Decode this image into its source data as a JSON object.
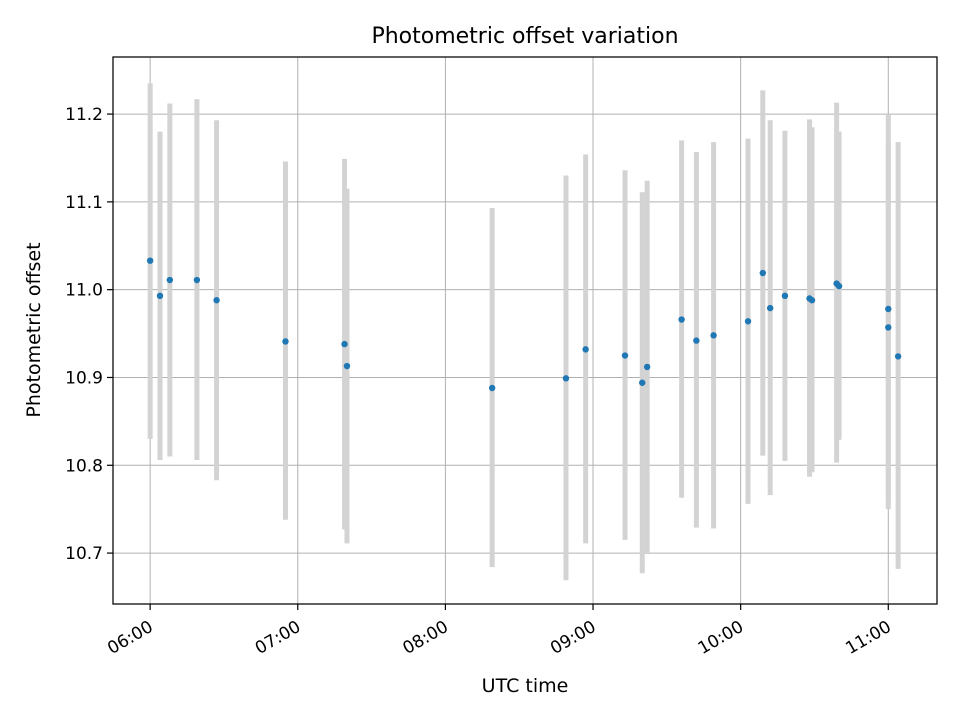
{
  "chart_data": {
    "type": "scatter",
    "title": "Photometric offset variation",
    "xlabel": "UTC time",
    "ylabel": "Photometric offset",
    "x_tick_labels": [
      "06:00",
      "07:00",
      "08:00",
      "09:00",
      "10:00",
      "11:00"
    ],
    "x_ticks_minutes": [
      0,
      60,
      120,
      180,
      240,
      300
    ],
    "y_ticks": [
      10.7,
      10.8,
      10.9,
      11.0,
      11.1,
      11.2
    ],
    "y_tick_labels": [
      "10.7",
      "10.8",
      "10.9",
      "11.0",
      "11.1",
      "11.2"
    ],
    "xlim_minutes": [
      -15.1,
      319.8
    ],
    "ylim": [
      10.642,
      11.265
    ],
    "grid": true,
    "series": [
      {
        "error_color": "#d3d3d3",
        "point_color": "#1f77b4",
        "points": [
          {
            "t": "06:00",
            "y": 11.033,
            "err_low": 10.83,
            "err_high": 11.235
          },
          {
            "t": "06:04",
            "y": 10.993,
            "err_low": 10.806,
            "err_high": 11.18
          },
          {
            "t": "06:08",
            "y": 11.011,
            "err_low": 10.81,
            "err_high": 11.212
          },
          {
            "t": "06:19",
            "y": 11.011,
            "err_low": 10.806,
            "err_high": 11.217
          },
          {
            "t": "06:27",
            "y": 10.988,
            "err_low": 10.783,
            "err_high": 11.193
          },
          {
            "t": "06:55",
            "y": 10.941,
            "err_low": 10.738,
            "err_high": 11.146
          },
          {
            "t": "07:19",
            "y": 10.938,
            "err_low": 10.727,
            "err_high": 11.149
          },
          {
            "t": "07:20",
            "y": 10.913,
            "err_low": 10.711,
            "err_high": 11.115
          },
          {
            "t": "08:19",
            "y": 10.888,
            "err_low": 10.684,
            "err_high": 11.093
          },
          {
            "t": "08:49",
            "y": 10.899,
            "err_low": 10.669,
            "err_high": 11.13
          },
          {
            "t": "08:57",
            "y": 10.932,
            "err_low": 10.711,
            "err_high": 11.154
          },
          {
            "t": "09:13",
            "y": 10.925,
            "err_low": 10.715,
            "err_high": 11.136
          },
          {
            "t": "09:20",
            "y": 10.894,
            "err_low": 10.677,
            "err_high": 11.111
          },
          {
            "t": "09:22",
            "y": 10.912,
            "err_low": 10.701,
            "err_high": 11.124
          },
          {
            "t": "09:36",
            "y": 10.966,
            "err_low": 10.763,
            "err_high": 11.17
          },
          {
            "t": "09:42",
            "y": 10.942,
            "err_low": 10.729,
            "err_high": 11.157
          },
          {
            "t": "09:49",
            "y": 10.948,
            "err_low": 10.728,
            "err_high": 11.168
          },
          {
            "t": "10:03",
            "y": 10.964,
            "err_low": 10.756,
            "err_high": 11.172
          },
          {
            "t": "10:09",
            "y": 11.019,
            "err_low": 10.811,
            "err_high": 11.227
          },
          {
            "t": "10:12",
            "y": 10.979,
            "err_low": 10.766,
            "err_high": 11.193
          },
          {
            "t": "10:18",
            "y": 10.993,
            "err_low": 10.805,
            "err_high": 11.181
          },
          {
            "t": "10:28",
            "y": 10.99,
            "err_low": 10.787,
            "err_high": 11.194
          },
          {
            "t": "10:29",
            "y": 10.988,
            "err_low": 10.792,
            "err_high": 11.185
          },
          {
            "t": "10:39",
            "y": 11.007,
            "err_low": 10.803,
            "err_high": 11.213
          },
          {
            "t": "10:40",
            "y": 11.004,
            "err_low": 10.829,
            "err_high": 11.18
          },
          {
            "t": "11:00",
            "y": 10.978,
            "err_low": 10.757,
            "err_high": 11.2
          },
          {
            "t": "11:00",
            "y": 10.957,
            "err_low": 10.75,
            "err_high": 11.167
          },
          {
            "t": "11:04",
            "y": 10.924,
            "err_low": 10.682,
            "err_high": 11.168
          }
        ]
      }
    ]
  }
}
